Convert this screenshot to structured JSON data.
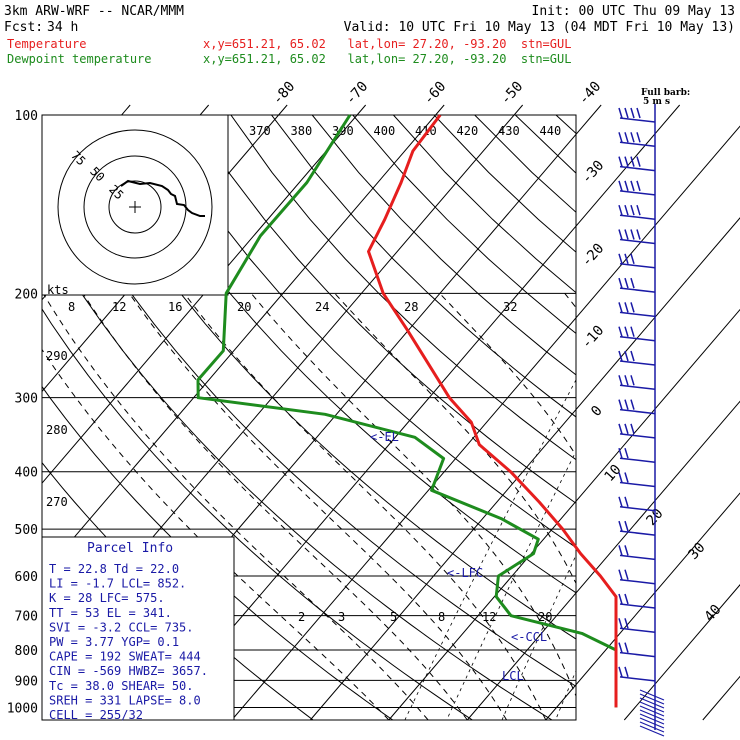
{
  "header": {
    "model": "3km ARW-WRF -- NCAR/MMM",
    "init": "Init: 00 UTC Thu 09 May 13",
    "fcst_label": "Fcst:",
    "fcst_value": "34 h",
    "valid": "Valid: 10 UTC Fri 10 May 13 (04 MDT Fri 10 May 13)",
    "temp_label": "Temperature",
    "temp_meta": "x,y=651.21, 65.02   lat,lon= 27.20, -93.20  stn=GUL",
    "dew_label": "Dewpoint temperature",
    "dew_meta": "x,y=651.21, 65.02   lat,lon= 27.20, -93.20  stn=GUL"
  },
  "colors": {
    "temperature": "#e61e1e",
    "dewpoint": "#1e8c1e",
    "info_text": "#1a1aa6",
    "wind_barb": "#1a1aa6",
    "grid": "#000000"
  },
  "wind": {
    "legend_line1": "Full barb:",
    "legend_line2": "5 m s"
  },
  "hodograph": {
    "ring_labels": [
      "75",
      "50",
      "25"
    ],
    "kts_label": "kts"
  },
  "levels": {
    "el": "<-EL",
    "lfc": "<-LFC",
    "ccl": "<-CCL",
    "lcl": "LCL"
  },
  "parcel": {
    "title": "Parcel Info",
    "rows": [
      "T   =   22.8  Td =  22.0",
      "LI  =   -1.7  LCL=  852.",
      "K   =     28  LFC=  575.",
      "TT  =     53  EL =  341.",
      "SVI =   -3.2  CCL=  735.",
      "PW  =   3.77  YGP=   0.1",
      "CAPE =   192  SWEAT=  444",
      "CIN =   -569  HWBZ= 3657.",
      "Tc  =   38.0  SHEAR=  50.",
      "SREH =   331  LAPSE=  8.0",
      "CELL = 255/32"
    ]
  },
  "chart_data": {
    "type": "skew-t",
    "title": "",
    "xlabel": "",
    "ylabel": "",
    "pressure_ticks": [
      100,
      200,
      300,
      400,
      500,
      600,
      700,
      800,
      900,
      1000
    ],
    "isotherm_labels": [
      "-80",
      "-70",
      "-60",
      "-50",
      "-40",
      "-30",
      "-20",
      "-10",
      "0",
      "10",
      "20",
      "30",
      "40"
    ],
    "theta_labels_top": [
      "370",
      "380",
      "390",
      "400",
      "410",
      "420",
      "430",
      "440"
    ],
    "theta_labels_left": [
      "290",
      "280",
      "270"
    ],
    "mixing_ratio_labels_upper": [
      "8",
      "12",
      "16",
      "20",
      "24",
      "28",
      "32"
    ],
    "mixing_ratio_labels_lower": [
      "2",
      "3",
      "5",
      "8",
      "12",
      "20"
    ],
    "series": [
      {
        "name": "Temperature",
        "points": [
          [
            100,
            -70.5
          ],
          [
            115,
            -70
          ],
          [
            130,
            -68
          ],
          [
            150,
            -66
          ],
          [
            170,
            -64.5
          ],
          [
            200,
            -58
          ],
          [
            230,
            -51
          ],
          [
            260,
            -45
          ],
          [
            300,
            -38
          ],
          [
            330,
            -32.5
          ],
          [
            360,
            -29
          ],
          [
            400,
            -22
          ],
          [
            450,
            -15
          ],
          [
            500,
            -9
          ],
          [
            550,
            -4
          ],
          [
            600,
            1
          ],
          [
            650,
            5.5
          ],
          [
            700,
            8.5
          ],
          [
            750,
            11
          ],
          [
            800,
            14
          ],
          [
            850,
            17
          ],
          [
            900,
            20
          ],
          [
            950,
            22
          ],
          [
            1000,
            22.8
          ]
        ]
      },
      {
        "name": "Dewpoint temperature",
        "points": [
          [
            100,
            -82
          ],
          [
            130,
            -80
          ],
          [
            160,
            -80
          ],
          [
            200,
            -78
          ],
          [
            250,
            -72
          ],
          [
            280,
            -72
          ],
          [
            300,
            -70
          ],
          [
            320,
            -52
          ],
          [
            350,
            -38
          ],
          [
            380,
            -32
          ],
          [
            430,
            -30
          ],
          [
            480,
            -18
          ],
          [
            520,
            -11
          ],
          [
            550,
            -10
          ],
          [
            600,
            -12
          ],
          [
            650,
            -10
          ],
          [
            700,
            -6
          ],
          [
            750,
            5
          ],
          [
            800,
            14
          ],
          [
            850,
            13
          ],
          [
            880,
            15
          ],
          [
            900,
            16
          ],
          [
            930,
            19
          ],
          [
            960,
            21
          ],
          [
            1000,
            22
          ]
        ]
      }
    ],
    "wind_barbs_count": 24,
    "hodograph_ring_values": [
      75,
      50,
      25
    ]
  }
}
